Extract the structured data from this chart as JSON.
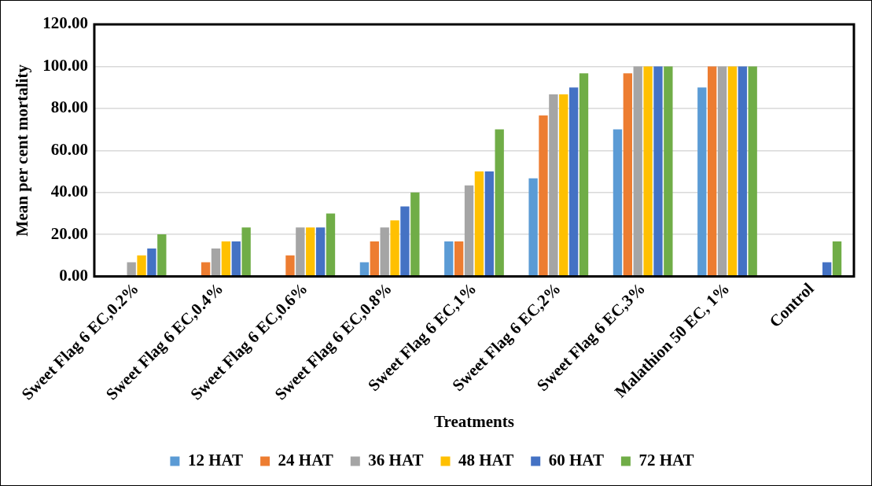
{
  "chart_data": {
    "type": "bar",
    "xlabel": "Treatments",
    "ylabel": "Mean per cent mortality",
    "categories": [
      "Sweet Flag 6 EC,0.2%",
      "Sweet Flag 6 EC,0.4%",
      "Sweet Flag 6 EC,0.6%",
      "Sweet Flag 6 EC,0.8%",
      "Sweet Flag 6 EC,1%",
      "Sweet Flag 6 EC,2%",
      "Sweet Flag 6 EC,3%",
      "Malathion 50 EC, 1%",
      "Control"
    ],
    "series": [
      {
        "name": "12 HAT",
        "color": "#5b9bd5",
        "values": [
          0,
          0,
          0,
          6.7,
          16.7,
          46.7,
          70,
          90,
          0
        ]
      },
      {
        "name": "24 HAT",
        "color": "#ed7d31",
        "values": [
          0,
          6.7,
          10,
          16.7,
          16.7,
          76.7,
          96.7,
          100,
          0
        ]
      },
      {
        "name": "36 HAT",
        "color": "#a5a5a5",
        "values": [
          6.7,
          13.3,
          23.3,
          23.3,
          43.3,
          86.7,
          100,
          100,
          0
        ]
      },
      {
        "name": "48 HAT",
        "color": "#ffc000",
        "values": [
          10,
          16.7,
          23.3,
          26.7,
          50,
          86.7,
          100,
          100,
          0
        ]
      },
      {
        "name": "60 HAT",
        "color": "#4472c4",
        "values": [
          13.3,
          16.7,
          23.3,
          33.3,
          50,
          90,
          100,
          100,
          6.7
        ]
      },
      {
        "name": "72 HAT",
        "color": "#70ad47",
        "values": [
          20,
          23.3,
          30,
          40,
          70,
          96.7,
          100,
          100,
          16.7
        ]
      }
    ],
    "ylim": [
      0,
      120
    ],
    "yticks": [
      {
        "value": 0,
        "label": "0.00"
      },
      {
        "value": 20,
        "label": "20.00"
      },
      {
        "value": 40,
        "label": "40.00"
      },
      {
        "value": 60,
        "label": "60.00"
      },
      {
        "value": 80,
        "label": "80.00"
      },
      {
        "value": 100,
        "label": "100.00"
      },
      {
        "value": 120,
        "label": "120.00"
      }
    ],
    "grid": "y",
    "legend": "bottom"
  }
}
